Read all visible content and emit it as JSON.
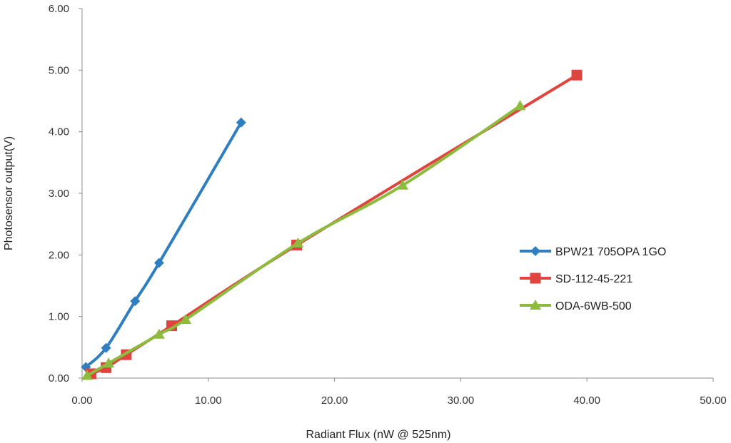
{
  "chart_data": {
    "type": "line",
    "title": "",
    "xlabel": "Radiant Flux (nW @ 525nm)",
    "ylabel": "Photosensor output(V)",
    "xlim": [
      0,
      50
    ],
    "ylim": [
      0,
      6
    ],
    "x_ticks": [
      "0.00",
      "10.00",
      "20.00",
      "30.00",
      "40.00",
      "50.00"
    ],
    "y_ticks": [
      "0.00",
      "1.00",
      "2.00",
      "3.00",
      "4.00",
      "5.00",
      "6.00"
    ],
    "grid": false,
    "legend_position": "right",
    "series": [
      {
        "name": "BPW21 705OPA 1GO",
        "color": "#2E7EC1",
        "marker": "diamond",
        "x": [
          0.3,
          1.9,
          4.2,
          6.1,
          12.6
        ],
        "y": [
          0.18,
          0.49,
          1.25,
          1.87,
          4.15
        ]
      },
      {
        "name": "SD-112-45-221",
        "color": "#E0443E",
        "marker": "square",
        "x": [
          0.7,
          1.9,
          3.5,
          7.1,
          17.0,
          39.2
        ],
        "y": [
          0.07,
          0.17,
          0.38,
          0.85,
          2.16,
          4.92
        ]
      },
      {
        "name": "ODA-6WB-500",
        "color": "#8DBB3E",
        "marker": "triangle",
        "x": [
          0.4,
          2.1,
          6.1,
          8.2,
          17.1,
          25.4,
          34.7
        ],
        "y": [
          0.04,
          0.24,
          0.71,
          0.95,
          2.19,
          3.13,
          4.42
        ]
      }
    ]
  }
}
